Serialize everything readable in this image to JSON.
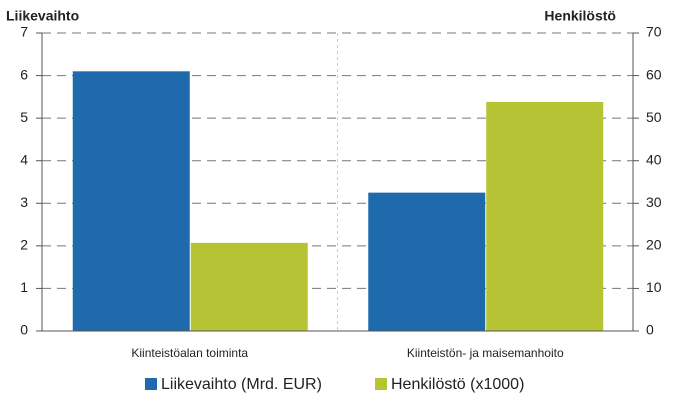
{
  "chart_data": {
    "type": "bar",
    "y_label": "Liikevaihto",
    "y2_label": "Henkilöstö",
    "categories": [
      "Kiinteistöalan toiminta",
      "Kiinteistön- ja maisemanhoito"
    ],
    "series": [
      {
        "name": "Liikevaihto (Mrd. EUR)",
        "color": "#1f6aad",
        "values": [
          6.1,
          3.25
        ]
      },
      {
        "name": "Henkilöstö (x1000)",
        "color": "#b5c334",
        "values": [
          20.7,
          53.8
        ],
        "axis": "y2"
      }
    ],
    "ylim": [
      0,
      7
    ],
    "yticks": [
      0,
      1,
      2,
      3,
      4,
      5,
      6,
      7
    ],
    "y2lim": [
      0,
      70
    ],
    "y2ticks": [
      0,
      10,
      20,
      30,
      40,
      50,
      60,
      70
    ],
    "grid": true,
    "legend": "bottom"
  }
}
